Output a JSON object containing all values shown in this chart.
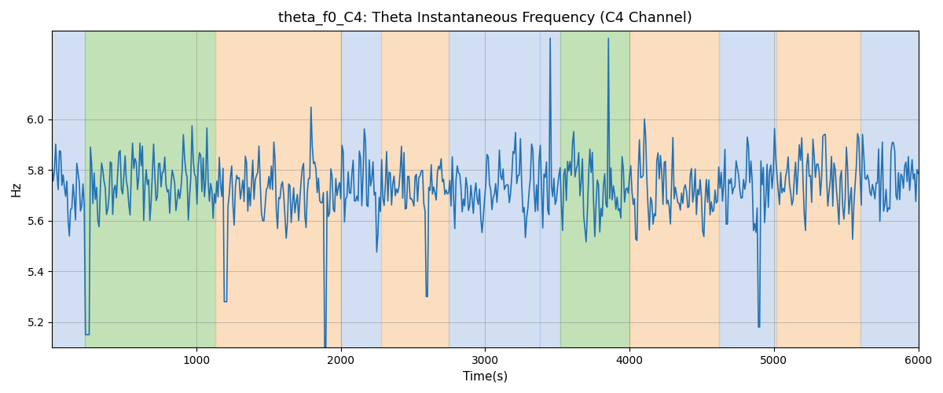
{
  "title": "theta_f0_C4: Theta Instantaneous Frequency (C4 Channel)",
  "xlabel": "Time(s)",
  "ylabel": "Hz",
  "xlim": [
    0,
    6000
  ],
  "ylim": [
    5.1,
    6.35
  ],
  "yticks": [
    5.2,
    5.4,
    5.6,
    5.8,
    6.0
  ],
  "xticks": [
    1000,
    2000,
    3000,
    4000,
    5000,
    6000
  ],
  "line_color": "#2171b5",
  "line_width": 1.2,
  "bg_color": "#ffffff",
  "background_bands": [
    {
      "xmin": 0,
      "xmax": 230,
      "color": "#aec6e8",
      "alpha": 0.55
    },
    {
      "xmin": 230,
      "xmax": 1130,
      "color": "#90c97a",
      "alpha": 0.55
    },
    {
      "xmin": 1130,
      "xmax": 2000,
      "color": "#f9c48b",
      "alpha": 0.55
    },
    {
      "xmin": 2000,
      "xmax": 2280,
      "color": "#aec6e8",
      "alpha": 0.55
    },
    {
      "xmin": 2280,
      "xmax": 2750,
      "color": "#f9c48b",
      "alpha": 0.55
    },
    {
      "xmin": 2750,
      "xmax": 3380,
      "color": "#aec6e8",
      "alpha": 0.55
    },
    {
      "xmin": 3380,
      "xmax": 3520,
      "color": "#aec6e8",
      "alpha": 0.55
    },
    {
      "xmin": 3520,
      "xmax": 4000,
      "color": "#90c97a",
      "alpha": 0.55
    },
    {
      "xmin": 4000,
      "xmax": 4620,
      "color": "#f9c48b",
      "alpha": 0.55
    },
    {
      "xmin": 4620,
      "xmax": 5020,
      "color": "#aec6e8",
      "alpha": 0.55
    },
    {
      "xmin": 5020,
      "xmax": 5600,
      "color": "#f9c48b",
      "alpha": 0.55
    },
    {
      "xmin": 5600,
      "xmax": 6000,
      "color": "#aec6e8",
      "alpha": 0.55
    }
  ],
  "seed": 42,
  "n_points": 700,
  "mean_freq": 5.75,
  "noise_scale": 0.12
}
